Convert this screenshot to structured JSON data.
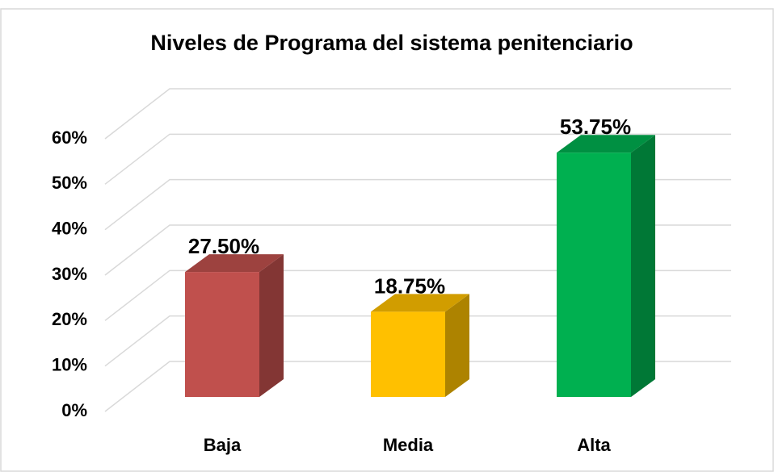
{
  "chart_data": {
    "type": "bar3d",
    "title": "Niveles de Programa del sistema penitenciario",
    "categories": [
      "Baja",
      "Media",
      "Alta"
    ],
    "values": [
      27.5,
      18.75,
      53.75
    ],
    "value_labels": [
      "27.50%",
      "18.75%",
      "53.75%"
    ],
    "colors": [
      "#c0504d",
      "#ffc000",
      "#00b050"
    ],
    "ylim": [
      0,
      60
    ],
    "yticks": [
      {
        "value": 0,
        "label": "0%"
      },
      {
        "value": 10,
        "label": "10%"
      },
      {
        "value": 20,
        "label": "20%"
      },
      {
        "value": 30,
        "label": "30%"
      },
      {
        "value": 40,
        "label": "40%"
      },
      {
        "value": 50,
        "label": "50%"
      },
      {
        "value": 60,
        "label": "60%"
      }
    ],
    "grid": true
  }
}
